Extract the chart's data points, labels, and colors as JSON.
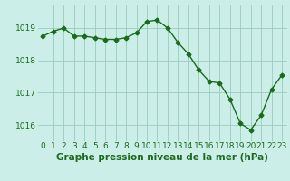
{
  "x": [
    0,
    1,
    2,
    3,
    4,
    5,
    6,
    7,
    8,
    9,
    10,
    11,
    12,
    13,
    14,
    15,
    16,
    17,
    18,
    19,
    20,
    21,
    22,
    23
  ],
  "y": [
    1018.75,
    1018.9,
    1019.0,
    1018.75,
    1018.75,
    1018.7,
    1018.65,
    1018.65,
    1018.7,
    1018.85,
    1019.2,
    1019.25,
    1019.0,
    1018.55,
    1018.2,
    1017.7,
    1017.35,
    1017.3,
    1016.8,
    1016.05,
    1015.85,
    1016.3,
    1017.1,
    1017.55
  ],
  "line_color": "#1a6b1a",
  "marker": "D",
  "markersize": 2.5,
  "linewidth": 1.0,
  "bg_color": "#cceee8",
  "grid_color": "#99ccbb",
  "title": "Graphe pression niveau de la mer (hPa)",
  "title_color": "#1a6b1a",
  "title_fontsize": 7.5,
  "ylim": [
    1015.5,
    1019.7
  ],
  "yticks": [
    1016,
    1017,
    1018,
    1019
  ],
  "xlim": [
    -0.5,
    23.5
  ],
  "xticks": [
    0,
    1,
    2,
    3,
    4,
    5,
    6,
    7,
    8,
    9,
    10,
    11,
    12,
    13,
    14,
    15,
    16,
    17,
    18,
    19,
    20,
    21,
    22,
    23
  ],
  "tick_fontsize": 6.5,
  "tick_color": "#1a6b1a"
}
